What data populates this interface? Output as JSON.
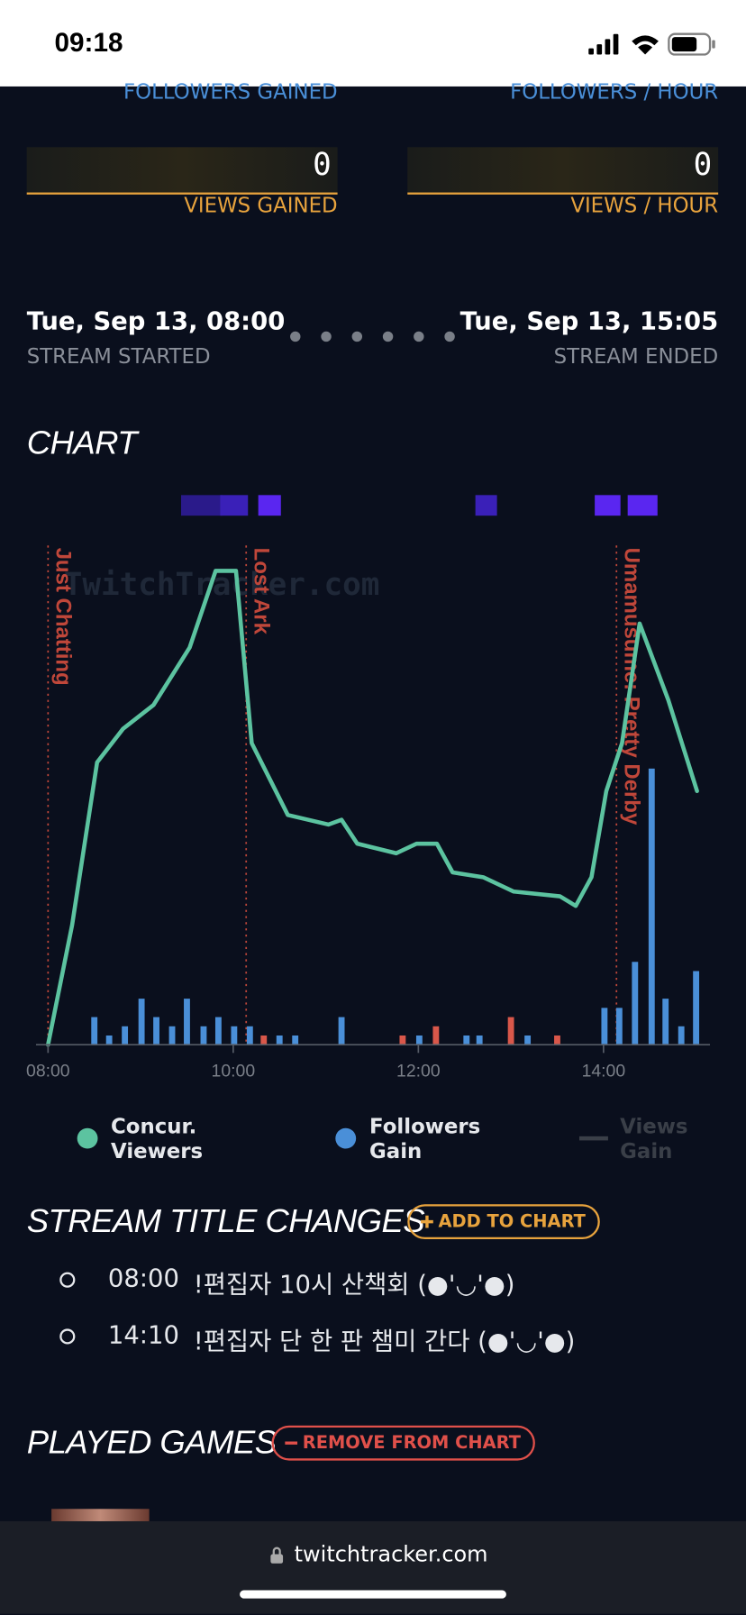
{
  "status_bar": {
    "time": "09:18"
  },
  "stats": [
    {
      "label": "FOLLOWERS GAINED"
    },
    {
      "label": "FOLLOWERS / HOUR"
    },
    {
      "value": 0,
      "label": "VIEWS GAINED"
    },
    {
      "value": 0,
      "label": "VIEWS / HOUR"
    }
  ],
  "stream": {
    "start": "Tue, Sep 13, 08:00",
    "start_label": "STREAM STARTED",
    "end": "Tue, Sep 13, 15:05",
    "end_label": "STREAM ENDED"
  },
  "chart_section": {
    "title": "CHART"
  },
  "chart_data": {
    "type": "combo",
    "watermark": "TwitchTracker.com",
    "xlim": [
      7.87,
      15.15
    ],
    "xticks": [
      {
        "value": 8,
        "label": "08:00"
      },
      {
        "value": 10,
        "label": "10:00"
      },
      {
        "value": 12,
        "label": "12:00"
      },
      {
        "value": 14,
        "label": "14:00"
      }
    ],
    "ylim": [
      0,
      100
    ],
    "y2lim": [
      0,
      52
    ],
    "annotations": [
      {
        "x": 8,
        "label": "Just Chatting"
      },
      {
        "x": 10.14,
        "label": "Lost Ark"
      },
      {
        "x": 14.14,
        "label": "Umamusume: Pretty Derby"
      }
    ],
    "series": [
      {
        "name": "Concur. Viewers",
        "type": "line",
        "color": "#5cc3a0",
        "x": [
          8,
          8.26,
          8.53,
          8.81,
          9.14,
          9.53,
          9.81,
          10.03,
          10.2,
          10.59,
          11.03,
          11.17,
          11.34,
          11.76,
          11.98,
          12.2,
          12.37,
          12.7,
          13.03,
          13.53,
          13.7,
          13.87,
          14.03,
          14.2,
          14.39,
          14.7,
          15.01
        ],
        "values": [
          0,
          25,
          59,
          66,
          71,
          83,
          99,
          99,
          63,
          48,
          46,
          47,
          42,
          40,
          42,
          42,
          36,
          35,
          32,
          31,
          29,
          35,
          53,
          63,
          88,
          72,
          53
        ]
      },
      {
        "name": "Followers Gain",
        "type": "bar",
        "axis": "y2",
        "color": "#4a8fd8",
        "x": [
          8.5,
          8.66,
          8.83,
          9.01,
          9.17,
          9.34,
          9.5,
          9.68,
          9.84,
          10.01,
          10.18,
          10.33,
          10.5,
          10.67,
          11.17,
          11.83,
          12.01,
          12.19,
          12.52,
          12.66,
          13.0,
          13.18,
          13.5,
          14.01,
          14.17,
          14.34,
          14.52,
          14.67,
          14.84,
          15.0
        ],
        "values": [
          3,
          1,
          2,
          5,
          3,
          2,
          5,
          2,
          3,
          2,
          2,
          1,
          1,
          1,
          3,
          1,
          1,
          2,
          1,
          1,
          3,
          1,
          1,
          4,
          4,
          9,
          30,
          5,
          2,
          8
        ],
        "colors": [
          "#4a8fd8",
          "#4a8fd8",
          "#4a8fd8",
          "#4a8fd8",
          "#4a8fd8",
          "#4a8fd8",
          "#4a8fd8",
          "#4a8fd8",
          "#4a8fd8",
          "#4a8fd8",
          "#4a8fd8",
          "#d9574a",
          "#4a8fd8",
          "#4a8fd8",
          "#4a8fd8",
          "#d9574a",
          "#4a8fd8",
          "#d9574a",
          "#4a8fd8",
          "#4a8fd8",
          "#d9574a",
          "#4a8fd8",
          "#d9574a",
          "#4a8fd8",
          "#4a8fd8",
          "#4a8fd8",
          "#4a8fd8",
          "#4a8fd8",
          "#4a8fd8",
          "#4a8fd8"
        ]
      },
      {
        "name": "Views Gain",
        "type": "line",
        "color": "#3a3f48",
        "hidden": true,
        "x": [],
        "values": []
      }
    ]
  },
  "title_changes": {
    "title": "STREAM TITLE CHANGES",
    "button": "ADD TO CHART",
    "items": [
      {
        "time": "08:00",
        "text": "!편집자 10시 산책회 (●'◡'●)"
      },
      {
        "time": "14:10",
        "text": "!편집자 단 한 판 챔미 간다 (●'◡'●)"
      }
    ]
  },
  "played_games": {
    "title": "PLAYED GAMES",
    "button": "REMOVE FROM CHART"
  },
  "browser": {
    "url": "twitchtracker.com"
  }
}
